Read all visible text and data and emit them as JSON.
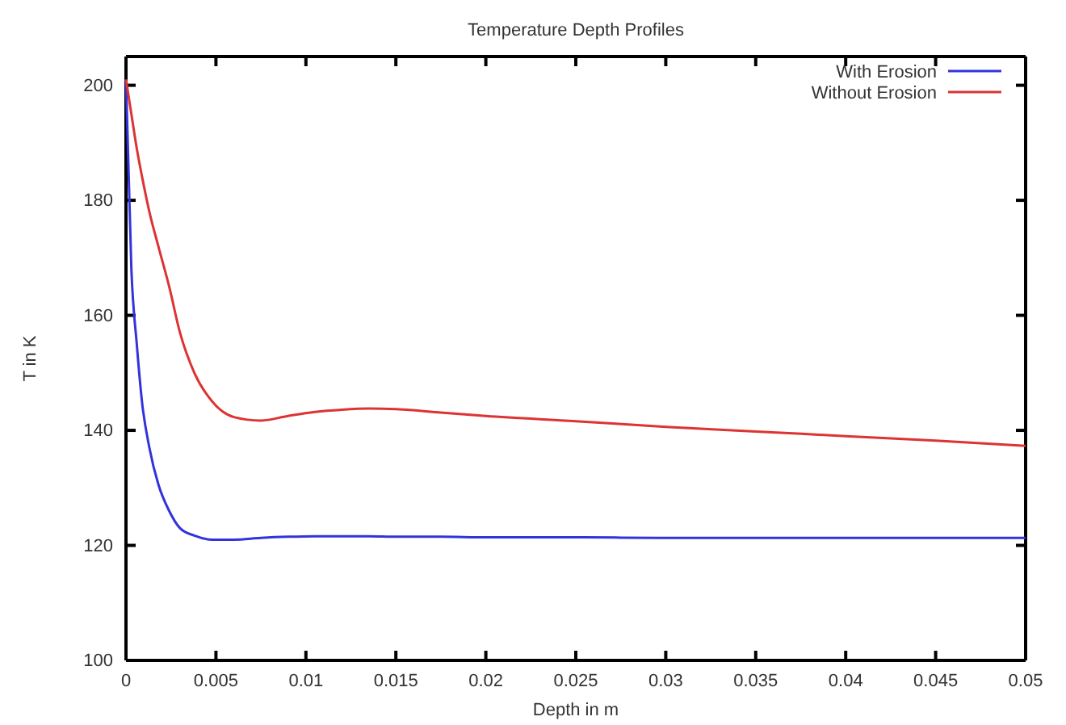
{
  "chart_data": {
    "type": "line",
    "title": "Temperature Depth Profiles",
    "xlabel": "Depth in m",
    "ylabel": "T in K",
    "xlim": [
      0,
      0.05
    ],
    "xticks": [
      0,
      0.005,
      0.01,
      0.015,
      0.02,
      0.025,
      0.03,
      0.035,
      0.04,
      0.045,
      0.05
    ],
    "ylim": [
      100,
      205
    ],
    "yticks": [
      100,
      120,
      140,
      160,
      180,
      200
    ],
    "grid": false,
    "legend": "top right",
    "marker": "none",
    "line_style": "solid",
    "x": [
      0,
      0.0003,
      0.0006,
      0.0009,
      0.0013,
      0.0018,
      0.0024,
      0.003,
      0.0038,
      0.0048,
      0.006,
      0.0075,
      0.009,
      0.0105,
      0.012,
      0.0135,
      0.015,
      0.0175,
      0.02,
      0.025,
      0.03,
      0.035,
      0.04,
      0.045,
      0.05
    ],
    "series": [
      {
        "name": "With Erosion",
        "color": "#3333dd",
        "values": [
          201,
          168,
          155,
          144.7,
          137,
          130.6,
          126,
          123,
          121.7,
          121,
          121,
          121.3,
          121.5,
          121.6,
          121.6,
          121.6,
          121.5,
          121.5,
          121.4,
          121.4,
          121.3,
          121.3,
          121.3,
          121.3,
          121.3
        ]
      },
      {
        "name": "Without Erosion",
        "color": "#dd3333",
        "values": [
          201,
          195,
          189,
          184,
          178,
          172,
          165,
          157,
          150,
          145,
          142.3,
          141.7,
          142.5,
          143.2,
          143.6,
          143.8,
          143.7,
          143.1,
          142.5,
          141.6,
          140.6,
          139.8,
          139,
          138.2,
          137.3
        ]
      }
    ]
  }
}
